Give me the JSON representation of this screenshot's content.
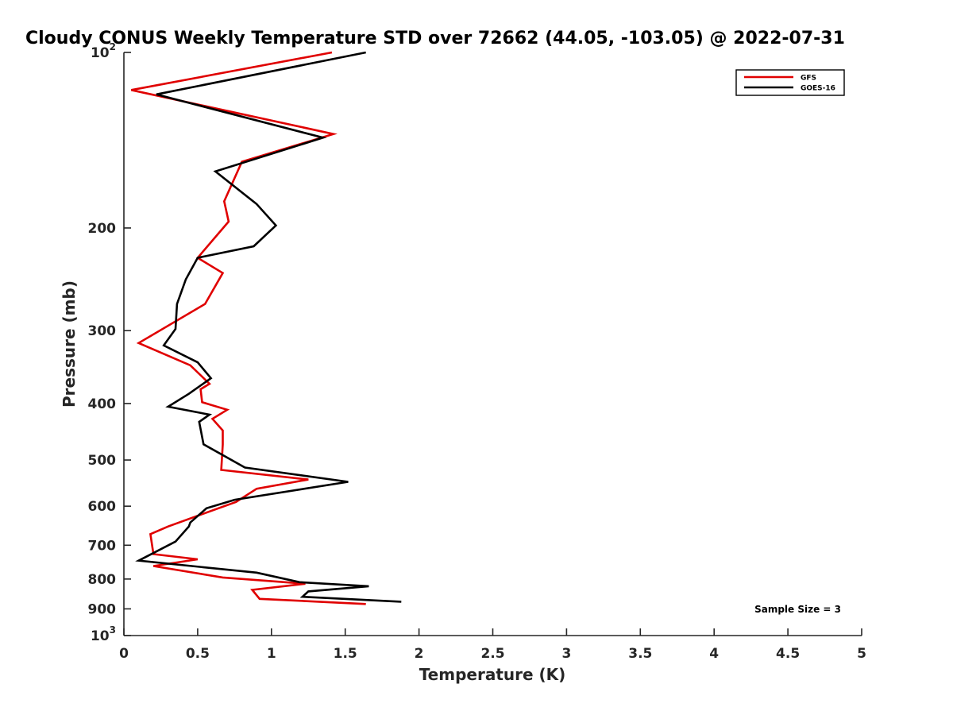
{
  "chart_data": {
    "type": "line",
    "title": "Cloudy CONUS Weekly Temperature STD over 72662 (44.05, -103.05) @ 2022-07-31",
    "xlabel": "Temperature (K)",
    "ylabel": "Pressure (mb)",
    "xlim": [
      0,
      5
    ],
    "ylim": [
      100,
      1000
    ],
    "yscale": "log",
    "y_reversed": true,
    "grid": false,
    "legend_position": "top-right",
    "x_ticks": [
      0,
      0.5,
      1,
      1.5,
      2,
      2.5,
      3,
      3.5,
      4,
      4.5,
      5
    ],
    "x_tick_labels": [
      "0",
      "0.5",
      "1",
      "1.5",
      "2",
      "2.5",
      "3",
      "3.5",
      "4",
      "4.5",
      "5"
    ],
    "y_ticks": [
      100,
      200,
      300,
      400,
      500,
      600,
      700,
      800,
      900,
      1000
    ],
    "y_tick_labels": [
      {
        "base": "10",
        "exp": "2"
      },
      {
        "base": "200",
        "exp": ""
      },
      {
        "base": "300",
        "exp": ""
      },
      {
        "base": "400",
        "exp": ""
      },
      {
        "base": "500",
        "exp": ""
      },
      {
        "base": "600",
        "exp": ""
      },
      {
        "base": "700",
        "exp": ""
      },
      {
        "base": "800",
        "exp": ""
      },
      {
        "base": "900",
        "exp": ""
      },
      {
        "base": "10",
        "exp": "3"
      }
    ],
    "series": [
      {
        "name": "GFS",
        "color": "#e00000",
        "points": [
          [
            1.41,
            100
          ],
          [
            0.05,
            116
          ],
          [
            1.42,
            138
          ],
          [
            0.8,
            154
          ],
          [
            0.68,
            180
          ],
          [
            0.71,
            195
          ],
          [
            0.5,
            225
          ],
          [
            0.67,
            239
          ],
          [
            0.55,
            270
          ],
          [
            0.1,
            315
          ],
          [
            0.45,
            344
          ],
          [
            0.58,
            370
          ],
          [
            0.52,
            378
          ],
          [
            0.53,
            398
          ],
          [
            0.7,
            410
          ],
          [
            0.6,
            425
          ],
          [
            0.67,
            445
          ],
          [
            0.67,
            470
          ],
          [
            0.66,
            520
          ],
          [
            1.25,
            540
          ],
          [
            0.9,
            560
          ],
          [
            0.76,
            590
          ],
          [
            0.3,
            650
          ],
          [
            0.18,
            670
          ],
          [
            0.2,
            725
          ],
          [
            0.5,
            740
          ],
          [
            0.2,
            760
          ],
          [
            0.67,
            795
          ],
          [
            1.23,
            815
          ],
          [
            0.87,
            835
          ],
          [
            0.92,
            865
          ],
          [
            1.64,
            883
          ]
        ]
      },
      {
        "name": "GOES-16",
        "color": "#000000",
        "points": [
          [
            1.64,
            100
          ],
          [
            0.22,
            118
          ],
          [
            1.35,
            140
          ],
          [
            0.62,
            160
          ],
          [
            0.9,
            182
          ],
          [
            1.03,
            198
          ],
          [
            0.88,
            215
          ],
          [
            0.5,
            225
          ],
          [
            0.42,
            245
          ],
          [
            0.36,
            270
          ],
          [
            0.35,
            298
          ],
          [
            0.27,
            318
          ],
          [
            0.5,
            340
          ],
          [
            0.59,
            362
          ],
          [
            0.44,
            385
          ],
          [
            0.3,
            405
          ],
          [
            0.58,
            418
          ],
          [
            0.51,
            430
          ],
          [
            0.54,
            470
          ],
          [
            0.82,
            515
          ],
          [
            1.52,
            545
          ],
          [
            0.75,
            585
          ],
          [
            0.56,
            605
          ],
          [
            0.45,
            640
          ],
          [
            0.44,
            650
          ],
          [
            0.35,
            690
          ],
          [
            0.1,
            744
          ],
          [
            0.9,
            780
          ],
          [
            1.19,
            810
          ],
          [
            1.66,
            823
          ],
          [
            1.25,
            840
          ],
          [
            1.21,
            858
          ],
          [
            1.88,
            875
          ]
        ]
      }
    ],
    "annotations": [
      "Sample Size = 3"
    ]
  },
  "colors": {
    "axis": "#262626",
    "background": "#ffffff"
  }
}
